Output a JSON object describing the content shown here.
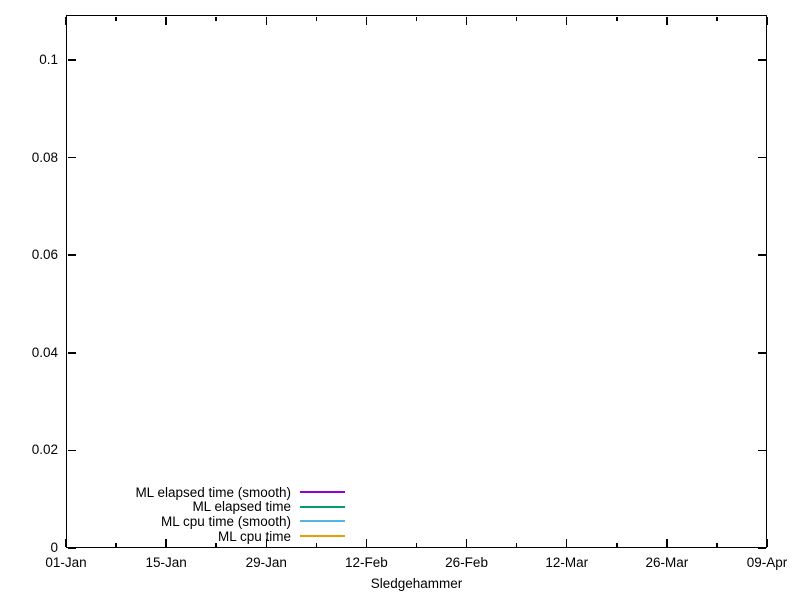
{
  "figure": {
    "background": "#ffffff",
    "axis_color": "#000000",
    "text_color": "#000000"
  },
  "chart_data": {
    "type": "line",
    "title": "",
    "xlabel": "Sledgehammer",
    "ylabel": "",
    "x_tick_labels": [
      "01-Jan",
      "15-Jan",
      "29-Jan",
      "12-Feb",
      "26-Feb",
      "12-Mar",
      "26-Mar",
      "09-Apr"
    ],
    "x_tick_days": [
      0,
      14,
      28,
      42,
      56,
      70,
      84,
      98
    ],
    "x_minor_tick_days": [
      7,
      21,
      35,
      49,
      63,
      77,
      91
    ],
    "x_range_days": [
      0,
      98
    ],
    "y_ticks": [
      0,
      0.02,
      0.04,
      0.06,
      0.08,
      0.1
    ],
    "y_tick_labels": [
      "0",
      "0.02",
      "0.04",
      "0.06",
      "0.08",
      "0.1"
    ],
    "ylim": [
      0,
      0.1092
    ],
    "grid": false,
    "legend_position": "inside-bottom-left",
    "series": [
      {
        "name": "ML elapsed time (smooth)",
        "color": "#9400d3",
        "points": []
      },
      {
        "name": "ML elapsed time",
        "color": "#009e73",
        "points": []
      },
      {
        "name": "ML cpu time (smooth)",
        "color": "#56b4e9",
        "points": []
      },
      {
        "name": "ML cpu time",
        "color": "#e69f00",
        "points": []
      }
    ]
  }
}
